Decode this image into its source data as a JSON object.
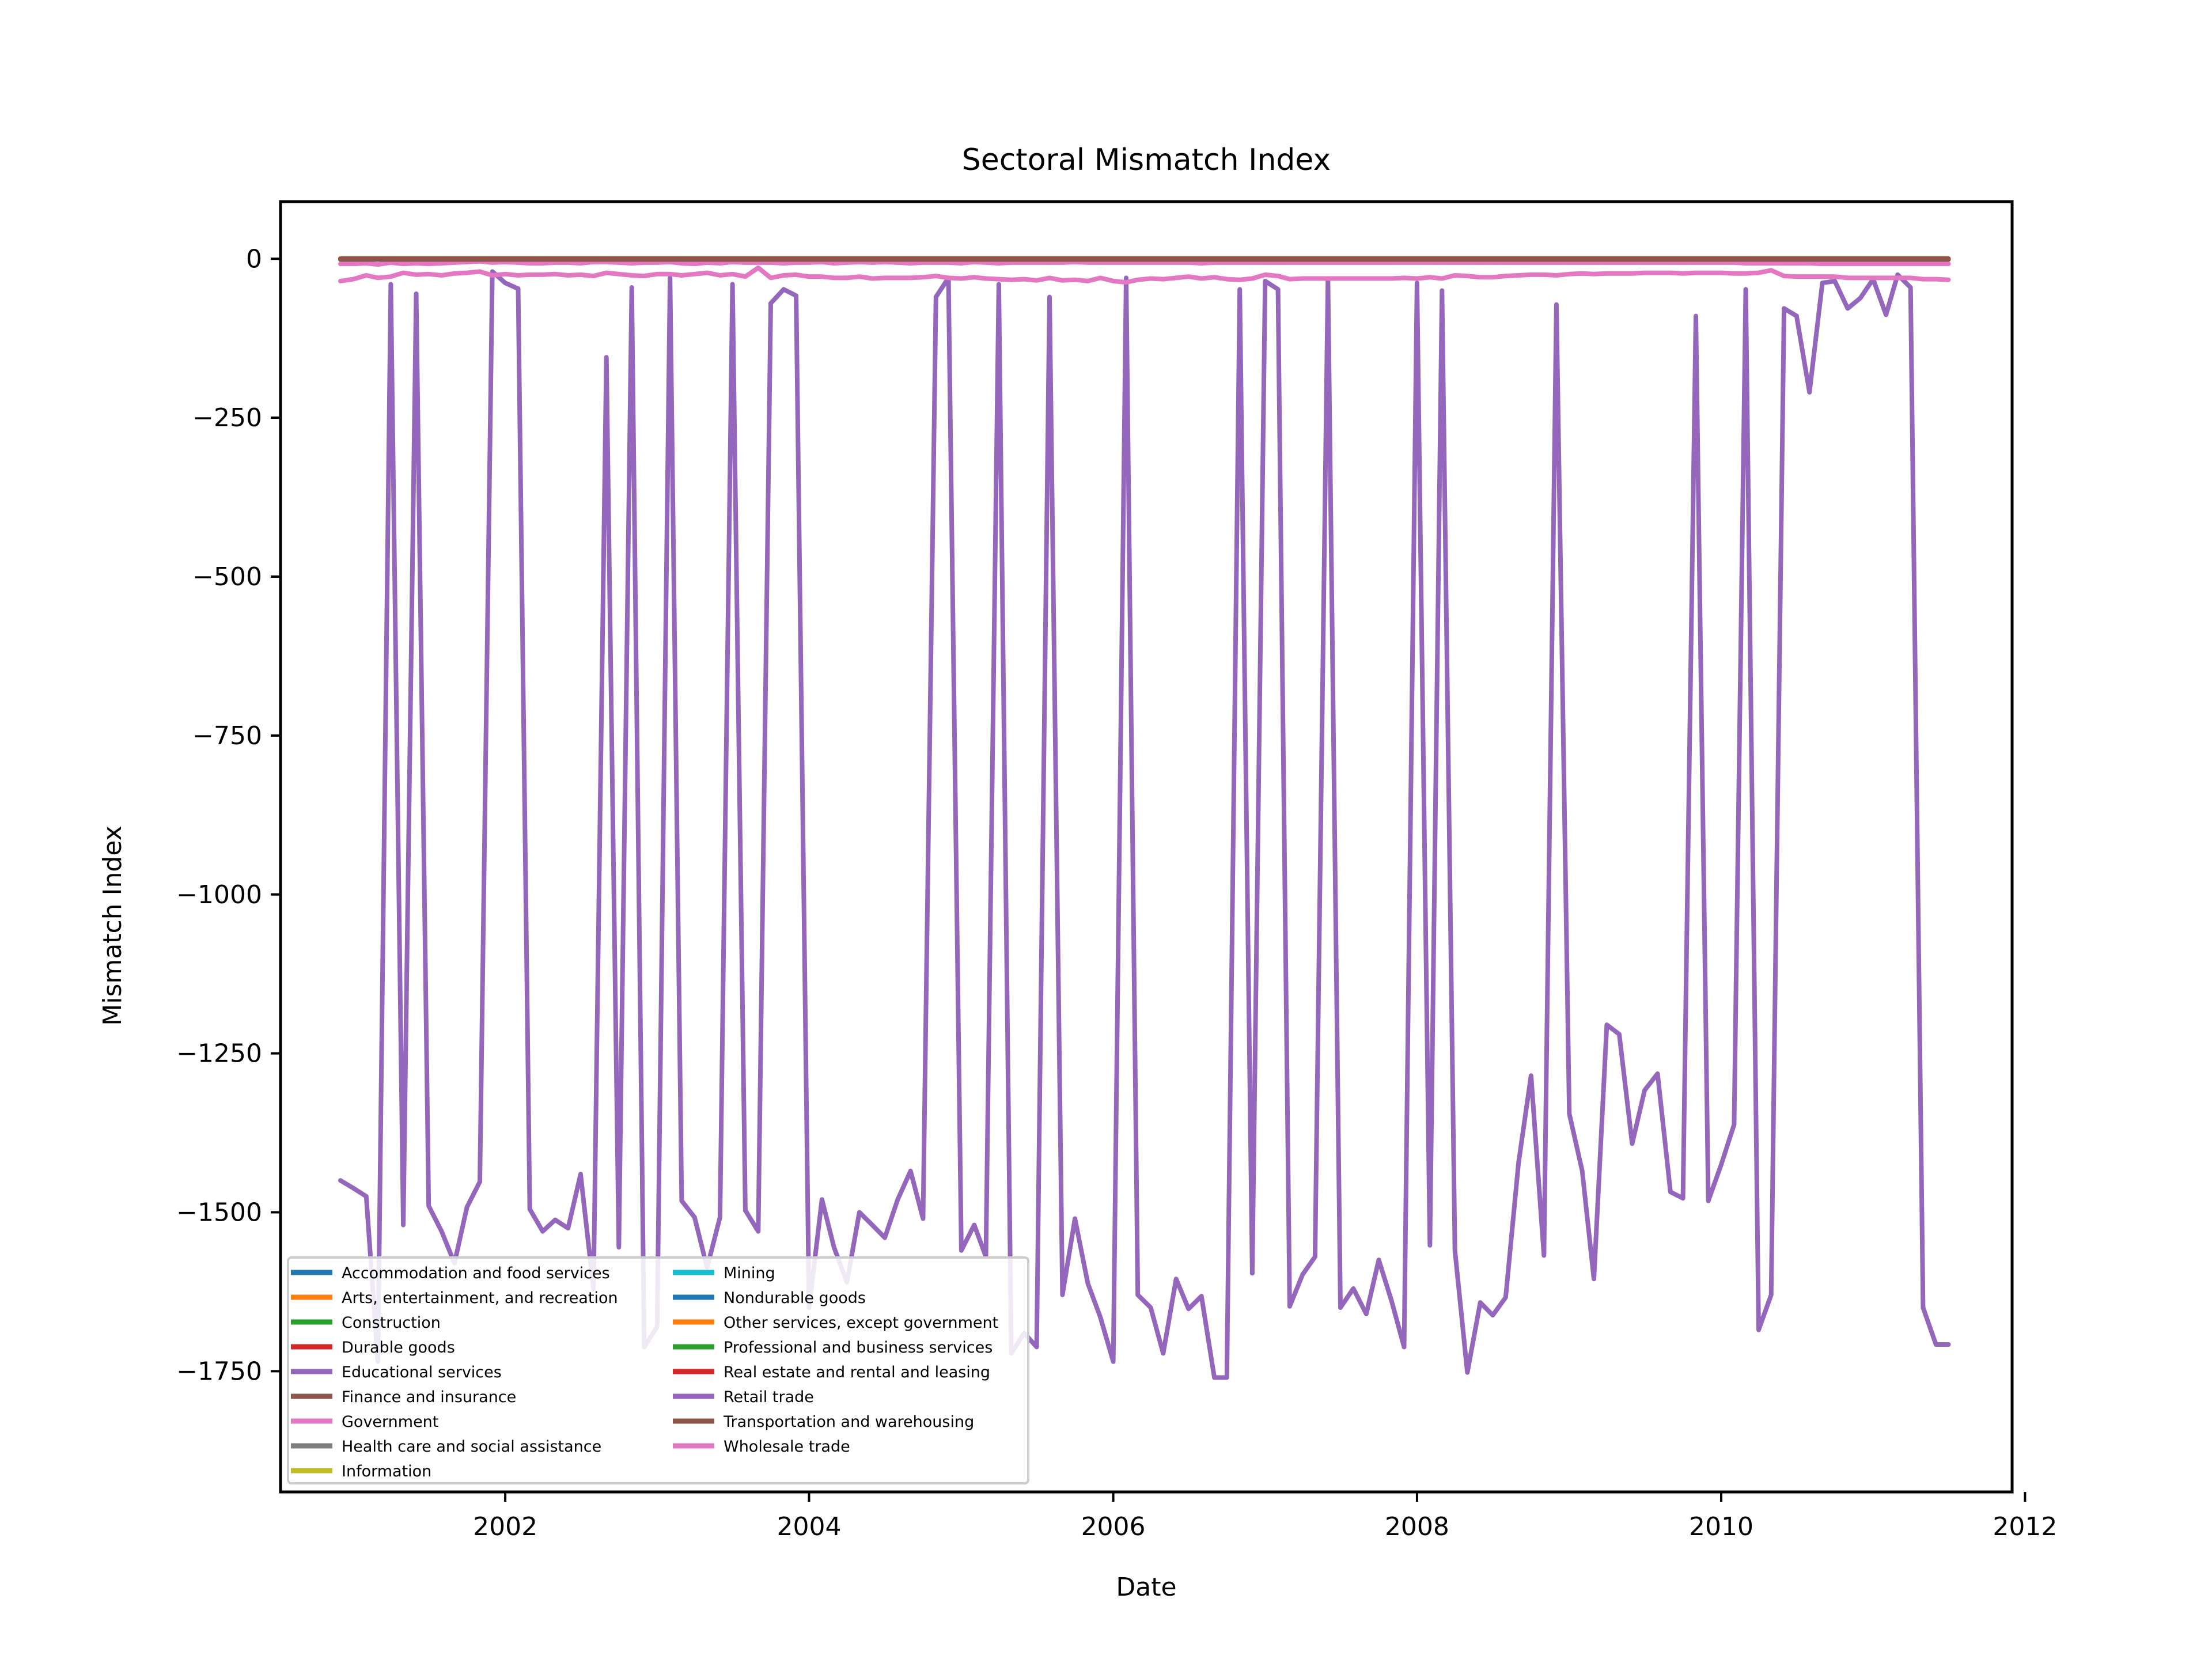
{
  "chart_data": {
    "type": "line",
    "title": "Sectoral Mismatch Index",
    "xlabel": "Date",
    "ylabel": "Mismatch Index",
    "x_range": [
      "2000-07-10",
      "2011-12-01"
    ],
    "ylim": [
      -1940,
      90
    ],
    "x_ticks": [
      {
        "date": "2002-01-01",
        "label": "2002"
      },
      {
        "date": "2004-01-01",
        "label": "2004"
      },
      {
        "date": "2006-01-01",
        "label": "2006"
      },
      {
        "date": "2008-01-01",
        "label": "2008"
      },
      {
        "date": "2010-01-01",
        "label": "2010"
      },
      {
        "date": "2012-01-01",
        "label": "2012"
      }
    ],
    "y_ticks": [
      {
        "value": 0,
        "label": "0"
      },
      {
        "value": -250,
        "label": "−250"
      },
      {
        "value": -500,
        "label": "−500"
      },
      {
        "value": -750,
        "label": "−750"
      },
      {
        "value": -1000,
        "label": "−1000"
      },
      {
        "value": -1250,
        "label": "−1250"
      },
      {
        "value": -1500,
        "label": "−1500"
      },
      {
        "value": -1750,
        "label": "−1750"
      }
    ],
    "grid": false,
    "legend_position": "lower-left",
    "start_date": "2000-12-01",
    "frequency": "monthly",
    "series": [
      {
        "name": "Accommodation and food services",
        "color": "#1f77b4",
        "values": [
          0
        ]
      },
      {
        "name": "Arts, entertainment, and recreation",
        "color": "#ff7f0e",
        "values": [
          0
        ]
      },
      {
        "name": "Construction",
        "color": "#2ca02c",
        "values": [
          0
        ]
      },
      {
        "name": "Durable goods",
        "color": "#d62728",
        "values": [
          0
        ]
      },
      {
        "name": "Educational services",
        "color": "#9467bd",
        "values": [
          -1
        ]
      },
      {
        "name": "Finance and insurance",
        "color": "#8c564b",
        "values": [
          -1
        ]
      },
      {
        "name": "Government",
        "color": "#e377c2",
        "values": [
          -8,
          -8,
          -7,
          -9,
          -6,
          -8,
          -7,
          -8,
          -7,
          -6,
          -5,
          -4,
          -6,
          -5,
          -6,
          -7,
          -7,
          -6,
          -6,
          -7,
          -5,
          -5,
          -6,
          -7,
          -6,
          -6,
          -5,
          -7,
          -8,
          -6,
          -7,
          -5,
          -6,
          -6,
          -6,
          -7,
          -6,
          -6,
          -5,
          -7,
          -6,
          -5,
          -6,
          -5,
          -6,
          -7,
          -6,
          -6,
          -6,
          -7,
          -5,
          -6,
          -7,
          -6,
          -6,
          -6,
          -6,
          -6,
          -5,
          -6,
          -6,
          -6,
          -6,
          -6,
          -6,
          -6,
          -6,
          -6,
          -7,
          -6,
          -6,
          -6,
          -6,
          -6,
          -6,
          -6,
          -6,
          -6,
          -6,
          -6,
          -6,
          -6,
          -6,
          -6,
          -6,
          -6,
          -6,
          -6,
          -6,
          -6,
          -6,
          -6,
          -6,
          -6,
          -6,
          -6,
          -6,
          -6,
          -6,
          -6,
          -6,
          -6,
          -6,
          -6,
          -6,
          -6,
          -6,
          -6,
          -6,
          -6,
          -6,
          -7,
          -7,
          -7,
          -7,
          -7,
          -7,
          -8,
          -8,
          -8,
          -8,
          -8,
          -8,
          -8,
          -8,
          -8,
          -8,
          -8,
          -8,
          -8,
          -8,
          -7,
          -7,
          -7,
          -7,
          -7,
          -7,
          -7,
          -8,
          -8,
          -8,
          -8,
          -8,
          -8,
          -8,
          -8,
          -8,
          -8,
          -8,
          -8,
          -8,
          -8,
          -8,
          -8,
          -8,
          -8,
          -8,
          -8,
          -8,
          -8,
          -8,
          -8,
          -8,
          -8,
          -8,
          -8,
          -8,
          -8,
          -8,
          -8,
          -8,
          -8,
          -8,
          -8,
          -8,
          -8,
          -8,
          -8,
          -8,
          -8,
          -8,
          -8,
          -8,
          -8,
          -8,
          -8,
          -8,
          -8,
          -8,
          -8,
          -8,
          -8,
          -8,
          -8,
          -8,
          -8,
          -8,
          -8,
          -8,
          -8,
          -8,
          -8,
          -8,
          -8,
          -8,
          -8,
          -8,
          -8,
          -8,
          -8,
          -8,
          -8,
          -8,
          -8,
          -8,
          -8,
          -8,
          -8,
          -8,
          -8,
          -8,
          -8,
          -8,
          -8,
          -8,
          -8,
          -8,
          -8,
          -8,
          -8,
          -8,
          -8,
          -8,
          -8,
          -8,
          -8,
          -8,
          -8,
          -8,
          -8,
          -8,
          -8,
          -8,
          -8,
          -8,
          -8,
          -8,
          -8,
          -8,
          -8,
          -8,
          -8,
          -8,
          -8,
          -8,
          -8,
          -8,
          -8,
          -8,
          -8,
          -8,
          -8,
          -8,
          -8,
          -8,
          -8
        ]
      },
      {
        "name": "Health care and social assistance",
        "color": "#7f7f7f",
        "values": [
          0
        ]
      },
      {
        "name": "Information",
        "color": "#bcbd22",
        "values": [
          0
        ]
      },
      {
        "name": "Mining",
        "color": "#17becf",
        "values": [
          0
        ]
      },
      {
        "name": "Nondurable goods",
        "color": "#1f77b4",
        "values": [
          0
        ]
      },
      {
        "name": "Other services, except government",
        "color": "#ff7f0e",
        "values": [
          0
        ]
      },
      {
        "name": "Professional and business services",
        "color": "#2ca02c",
        "values": [
          0
        ]
      },
      {
        "name": "Real estate and rental and leasing",
        "color": "#d62728",
        "values": [
          0
        ]
      },
      {
        "name": "Retail trade",
        "color": "#9467bd",
        "values": [
          -1450,
          -1462,
          -1475,
          -1735,
          -40,
          -1520,
          -55,
          -1490,
          -1530,
          -1580,
          -1492,
          -1452,
          -20,
          -38,
          -47,
          -1495,
          -1530,
          -1512,
          -1525,
          -1440,
          -1620,
          -155,
          -1555,
          -45,
          -1712,
          -1680,
          -30,
          -1482,
          -1508,
          -1587,
          -1508,
          -40,
          -1497,
          -1530,
          -70,
          -48,
          -58,
          -1650,
          -1480,
          -1555,
          -1610,
          -1500,
          -1520,
          -1540,
          -1480,
          -1435,
          -1510,
          -60,
          -30,
          -1560,
          -1520,
          -1570,
          -40,
          -1722,
          -1690,
          -1712,
          -60,
          -1630,
          -1510,
          -1612,
          -1665,
          -1735,
          -30,
          -1630,
          -1650,
          -1722,
          -1605,
          -1652,
          -1632,
          -1760,
          -1760,
          -48,
          -1596,
          -35,
          -48,
          -1648,
          -1598,
          -1570,
          -32,
          -1650,
          -1620,
          -1660,
          -1575,
          -1640,
          -1712,
          -38,
          -1552,
          -50,
          -1560,
          -1752,
          -1642,
          -1662,
          -1634,
          -1422,
          -1285,
          -1568,
          -72,
          -1345,
          -1435,
          -1605,
          -1205,
          -1220,
          -1392,
          -1308,
          -1282,
          -1468,
          -1478,
          -90,
          -1482,
          -1425,
          -1362,
          -48,
          -1685,
          -1630,
          -78,
          -90,
          -210,
          -38,
          -35,
          -78,
          -62,
          -32,
          -88,
          -25,
          -45,
          -1650,
          -1708
        ]
      },
      {
        "name": "Transportation and warehousing",
        "color": "#8c564b",
        "values": [
          -1
        ]
      },
      {
        "name": "Wholesale trade",
        "color": "#e377c2",
        "values": [
          -35,
          -32,
          -26,
          -30,
          -28,
          -22,
          -25,
          -24,
          -26,
          -23,
          -22,
          -20,
          -26,
          -24,
          -26,
          -25,
          -25,
          -24,
          -26,
          -25,
          -27,
          -22,
          -24,
          -26,
          -27,
          -24,
          -24,
          -26,
          -24,
          -22,
          -26,
          -24,
          -28,
          -14,
          -30,
          -26,
          -25,
          -28,
          -28,
          -30,
          -30,
          -28,
          -31,
          -30,
          -30,
          -30,
          -29,
          -27,
          -30,
          -31,
          -29,
          -31,
          -32,
          -33,
          -32,
          -34,
          -30,
          -34,
          -33,
          -35,
          -30,
          -35,
          -37,
          -33,
          -31,
          -32,
          -30,
          -28,
          -31,
          -29,
          -32,
          -33,
          -31,
          -25,
          -27,
          -32,
          -31,
          -31,
          -31,
          -31,
          -31,
          -31,
          -31,
          -31,
          -30,
          -31,
          -29,
          -31,
          -26,
          -27,
          -29,
          -29,
          -27,
          -26,
          -25,
          -25,
          -26,
          -24,
          -23,
          -24,
          -23,
          -23,
          -23,
          -22,
          -22,
          -22,
          -23,
          -22,
          -22,
          -22,
          -23,
          -23,
          -22,
          -18,
          -27,
          -28,
          -28,
          -28,
          -28,
          -30,
          -30,
          -30,
          -30,
          -30,
          -30,
          -32,
          -32,
          -33,
          -33,
          -34,
          -34,
          -34,
          -34,
          -34
        ]
      }
    ]
  }
}
